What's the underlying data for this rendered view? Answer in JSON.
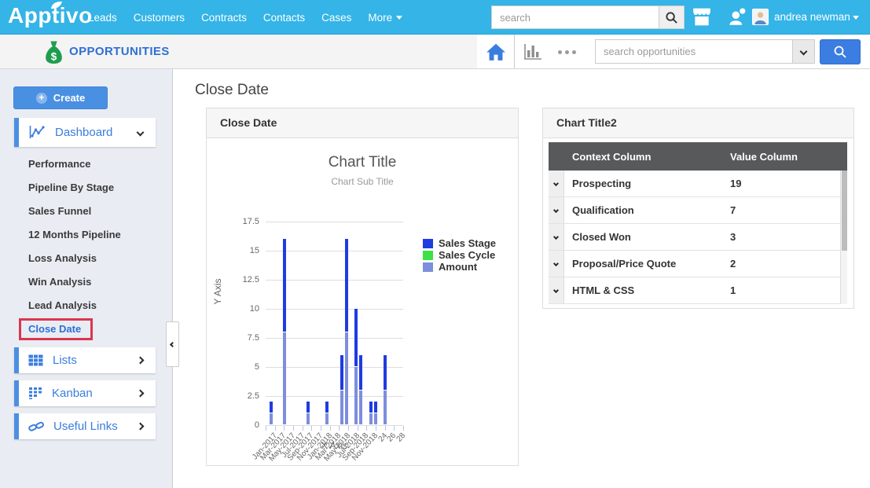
{
  "topbar": {
    "logo": "Apptivo",
    "nav_items": [
      {
        "label": "Leads",
        "caret": false
      },
      {
        "label": "Customers",
        "caret": false
      },
      {
        "label": "Contracts",
        "caret": false
      },
      {
        "label": "Contacts",
        "caret": false
      },
      {
        "label": "Cases",
        "caret": false
      },
      {
        "label": "More",
        "caret": true
      }
    ],
    "search_placeholder": "search",
    "icons": [
      "search-icon",
      "store-icon",
      "referral-icon",
      "avatar"
    ],
    "user_name": "andrea newman"
  },
  "appbar": {
    "app_name": "OPPORTUNITIES",
    "icons": [
      "money-bag-icon",
      "home-icon",
      "chart-view-icon",
      "more-dots-icon"
    ],
    "search_placeholder": "search opportunities"
  },
  "sidebar": {
    "create_label": "Create",
    "dashboard_label": "Dashboard",
    "dashboard_items": [
      {
        "label": "Performance",
        "active": false
      },
      {
        "label": "Pipeline By Stage",
        "active": false
      },
      {
        "label": "Sales Funnel",
        "active": false
      },
      {
        "label": "12 Months Pipeline",
        "active": false
      },
      {
        "label": "Loss Analysis",
        "active": false
      },
      {
        "label": "Win Analysis",
        "active": false
      },
      {
        "label": "Lead Analysis",
        "active": false
      },
      {
        "label": "Close Date",
        "active": true
      }
    ],
    "sections": [
      {
        "label": "Lists",
        "icon": "table-icon"
      },
      {
        "label": "Kanban",
        "icon": "kanban-icon"
      },
      {
        "label": "Useful Links",
        "icon": "link-icon"
      }
    ]
  },
  "main": {
    "page_title": "Close Date",
    "chart_panel_title": "Close Date",
    "table_panel_title": "Chart Title2"
  },
  "chart_data": {
    "type": "bar",
    "title": "Chart Title",
    "subtitle": "Chart Sub Title",
    "xlabel": "X Axis",
    "ylabel": "Y Axis",
    "ylim": [
      0,
      17.5
    ],
    "yticks": [
      0,
      2.5,
      5,
      7.5,
      10,
      12.5,
      15,
      17.5
    ],
    "grid": true,
    "legend_position": "right",
    "categories": [
      "Jan-2017",
      "Mar-2017",
      "May-2017",
      "Jul-2017",
      "Sep-2017",
      "Nov-2017",
      "Jan-2018",
      "Mar-2018",
      "May-2018",
      "Jul-2018",
      "Sep-2018",
      "Nov-2018",
      "24",
      "26",
      "28"
    ],
    "series": [
      {
        "name": "Sales Stage",
        "color": "#1e3ce1"
      },
      {
        "name": "Sales Cycle",
        "color": "#3ce146"
      },
      {
        "name": "Amount",
        "color": "#7d8edc"
      }
    ],
    "bars": [
      {
        "pos": 0.03,
        "amount": 1,
        "sales_stage": 1
      },
      {
        "pos": 0.125,
        "amount": 8,
        "sales_stage": 8
      },
      {
        "pos": 0.295,
        "amount": 1,
        "sales_stage": 1
      },
      {
        "pos": 0.435,
        "amount": 1,
        "sales_stage": 1
      },
      {
        "pos": 0.54,
        "amount": 3,
        "sales_stage": 3
      },
      {
        "pos": 0.578,
        "amount": 8,
        "sales_stage": 8
      },
      {
        "pos": 0.645,
        "amount": 5,
        "sales_stage": 5
      },
      {
        "pos": 0.682,
        "amount": 3,
        "sales_stage": 3
      },
      {
        "pos": 0.752,
        "amount": 1,
        "sales_stage": 1
      },
      {
        "pos": 0.788,
        "amount": 1,
        "sales_stage": 1
      },
      {
        "pos": 0.858,
        "amount": 3,
        "sales_stage": 3
      }
    ]
  },
  "table_data": {
    "type": "table",
    "columns": [
      "Context Column",
      "Value Column"
    ],
    "rows": [
      {
        "context": "Prospecting",
        "value": "19"
      },
      {
        "context": "Qualification",
        "value": "7"
      },
      {
        "context": "Closed Won",
        "value": "3"
      },
      {
        "context": "Proposal/Price Quote",
        "value": "2"
      },
      {
        "context": "HTML & CSS",
        "value": "1"
      }
    ]
  },
  "colors": {
    "topbar_blue": "#34b4e7",
    "link_blue": "#3b7ddd",
    "app_title_blue": "#2e6fd4",
    "create_blue": "#4a90e2",
    "search_button_blue": "#3b7de0",
    "highlight_red": "#d9364f",
    "table_header_gray": "#58595b",
    "money_bag_green": "#1f9d4f"
  }
}
